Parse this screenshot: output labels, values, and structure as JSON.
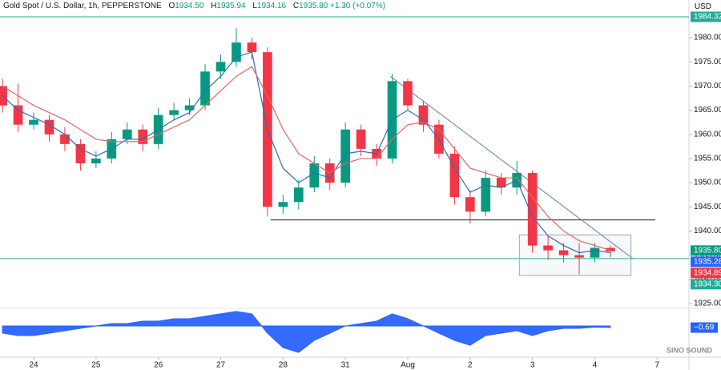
{
  "chart_data": {
    "type": "candlestick",
    "title": "Gold Spot / U.S. Dollar, 1h, PEPPERSTONE",
    "ohlc_keys": [
      "O",
      "H",
      "L",
      "C"
    ],
    "ohlc_values": [
      {
        "value": 1934.5,
        "label": "1934.50"
      },
      {
        "value": 1935.94,
        "label": "1935.94"
      },
      {
        "value": 1934.16,
        "label": "1934.16"
      },
      {
        "value": 1935.8,
        "label": "1935.80"
      }
    ],
    "change": "+1.30 (+0.07%)",
    "currency": "USD",
    "up_color": "#089981",
    "down_color": "#f23645",
    "x": [
      -0.5,
      -0.25,
      0,
      0.25,
      0.5,
      0.75,
      1,
      1.25,
      1.5,
      1.75,
      2,
      2.25,
      2.5,
      2.75,
      3,
      3.25,
      3.5,
      3.75,
      4,
      4.25,
      4.5,
      4.75,
      5,
      5.25,
      5.5,
      5.75,
      6,
      6.25,
      6.5,
      6.75,
      7,
      7.25,
      7.5,
      7.75,
      8,
      8.25,
      8.5,
      8.75,
      9,
      9.25
    ],
    "open": [
      1970,
      1966,
      1962,
      1963,
      1960,
      1958,
      1954,
      1955,
      1959,
      1961,
      1958,
      1964,
      1965,
      1966,
      1973,
      1975,
      1979,
      1977,
      1945,
      1946,
      1949,
      1954,
      1950,
      1961,
      1957,
      1955,
      1971,
      1966,
      1962,
      1956,
      1947,
      1944,
      1951,
      1949,
      1952,
      1937,
      1936,
      1935,
      1934.5,
      1936.5
    ],
    "high": [
      1971.5,
      1970.5,
      1964.5,
      1964,
      1961.5,
      1959,
      1956.5,
      1960.5,
      1962.5,
      1962,
      1965.5,
      1966.5,
      1967.5,
      1974.5,
      1976.5,
      1982,
      1980,
      1978,
      1947.5,
      1950.5,
      1955.5,
      1955,
      1962.5,
      1962,
      1958,
      1972.5,
      1971.5,
      1967,
      1963,
      1957.5,
      1948.5,
      1952.5,
      1952,
      1954.5,
      1952.5,
      1939,
      1937.5,
      1937.5,
      1937.5,
      1937
    ],
    "low": [
      1964.5,
      1960.5,
      1961,
      1958.5,
      1956.5,
      1952.5,
      1953,
      1954,
      1958,
      1956.5,
      1957,
      1963,
      1964,
      1965,
      1971.5,
      1974,
      1975.5,
      1943,
      1943.5,
      1944.5,
      1948,
      1948.5,
      1949,
      1955.5,
      1953.5,
      1954,
      1965,
      1960.5,
      1955,
      1945.5,
      1941.5,
      1943,
      1947.5,
      1947.5,
      1935.5,
      1934,
      1933.5,
      1931,
      1933.5,
      1934.5
    ],
    "close": [
      1966,
      1962,
      1963,
      1960,
      1958,
      1954,
      1955,
      1959,
      1961,
      1958,
      1964,
      1965,
      1966,
      1973,
      1975,
      1979,
      1977,
      1945,
      1946,
      1949,
      1954,
      1950,
      1961,
      1957,
      1955,
      1971,
      1966,
      1962,
      1956,
      1947,
      1944,
      1951,
      1949,
      1952,
      1937,
      1936,
      1935,
      1934.5,
      1936.5,
      1935.8
    ],
    "series": [
      {
        "color": "#2a6fb0",
        "values": [
          1968,
          1965,
          1963.5,
          1962,
          1960,
          1957,
          1955.5,
          1957,
          1959,
          1959,
          1961,
          1963,
          1964.5,
          1969,
          1972,
          1976,
          1977,
          1961,
          1953,
          1950,
          1952,
          1951,
          1956,
          1956.5,
          1956,
          1963,
          1965,
          1963,
          1959,
          1953,
          1948,
          1949.5,
          1949,
          1950.5,
          1943,
          1939,
          1937,
          1935.5,
          1936,
          1935.5
        ]
      },
      {
        "color": "#e06666",
        "values": [
          1970,
          1968,
          1966,
          1964.5,
          1963,
          1961,
          1959,
          1958.5,
          1958.5,
          1958.5,
          1960,
          1961.5,
          1963,
          1966,
          1969,
          1972,
          1974,
          1968,
          1961,
          1956,
          1954,
          1952,
          1954,
          1955,
          1955,
          1959,
          1962,
          1962.5,
          1961,
          1957,
          1953,
          1952,
          1951,
          1951,
          1947,
          1943,
          1940,
          1938,
          1937,
          1936
        ]
      }
    ],
    "xlim": [
      -0.54,
      10.51
    ],
    "xticks": [
      {
        "value": 0,
        "label": "24"
      },
      {
        "value": 1,
        "label": "25"
      },
      {
        "value": 2,
        "label": "26"
      },
      {
        "value": 3,
        "label": "27"
      },
      {
        "value": 4,
        "label": "28"
      },
      {
        "value": 5,
        "label": "31"
      },
      {
        "value": 6,
        "label": "Aug"
      },
      {
        "value": 7,
        "label": "2"
      },
      {
        "value": 8,
        "label": "3"
      },
      {
        "value": 9,
        "label": "4"
      },
      {
        "value": 10,
        "label": "7"
      }
    ],
    "ylim": [
      1924.0,
      1987.8
    ],
    "yticks": [
      {
        "value": 1925,
        "label": "1925.00"
      },
      {
        "value": 1930,
        "label": "1930.00"
      },
      {
        "value": 1935,
        "label": "1935.00"
      },
      {
        "value": 1940,
        "label": "1940.00"
      },
      {
        "value": 1945,
        "label": "1945.00"
      },
      {
        "value": 1950,
        "label": "1950.00"
      },
      {
        "value": 1955,
        "label": "1955.00"
      },
      {
        "value": 1960,
        "label": "1960.00"
      },
      {
        "value": 1965,
        "label": "1965.00"
      },
      {
        "value": 1970,
        "label": "1970.00"
      },
      {
        "value": 1975,
        "label": "1975.00"
      },
      {
        "value": 1980,
        "label": "1980.00"
      }
    ],
    "price_lines": [
      {
        "value": 1984.32,
        "label": "1984.32",
        "color": "#22ab94"
      },
      {
        "value": 1934.3,
        "label": "1934.30",
        "color": "#22ab94"
      }
    ],
    "level_line": {
      "value": 1942.3,
      "x": [
        3.8,
        9.97
      ],
      "color": "#131722"
    },
    "trend_line": {
      "x": [
        5.72,
        9.61
      ],
      "y": [
        1972,
        1934.3
      ],
      "color": "#5b7fa6"
    },
    "range_box": {
      "x": [
        7.79,
        9.58
      ],
      "y": [
        1930.8,
        1939.2
      ],
      "color": "#9aa7b8"
    },
    "price_tags": [
      {
        "value": 1935.8,
        "label": "1935.80",
        "color": "#089981"
      },
      {
        "value": 1935.28,
        "label": "1935.28",
        "color": "#2962ff"
      },
      {
        "value": 1934.89,
        "label": "1934.89",
        "color": "#f23645"
      }
    ],
    "oscillator": {
      "color": "#2962ff",
      "ylim": [
        -14.3,
        7.3
      ],
      "values": [
        -3,
        -4,
        -4,
        -3,
        -2,
        -1,
        0,
        1,
        1,
        2,
        2,
        3,
        3,
        4,
        5,
        6,
        5,
        -3,
        -9,
        -11,
        -6,
        -3,
        0,
        1,
        2,
        5,
        3,
        0,
        -3,
        -6,
        -8,
        -4,
        -3,
        -2,
        -4,
        -2,
        -1,
        -1,
        -0.5,
        -0.69
      ],
      "last": {
        "value": -0.69,
        "label": "−0.69"
      }
    },
    "watermark": "SINO SOUND"
  }
}
